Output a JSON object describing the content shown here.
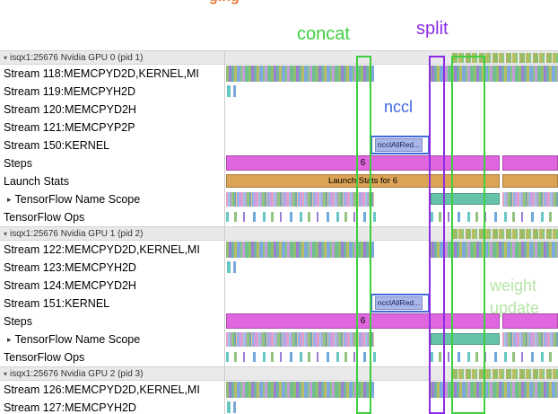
{
  "annotations": {
    "concat": {
      "label": "concat",
      "color": "#3ecf3e"
    },
    "split": {
      "label": "split",
      "color": "#8b2be2"
    },
    "nccl": {
      "label": "nccl",
      "color": "#4169e1"
    },
    "weight_update": {
      "label": "weight update",
      "color": "#b7e6a9"
    }
  },
  "colors": {
    "steps_bar": "#e066e0",
    "launch_bar": "#dba355",
    "nccl_bar": "#abb6e8",
    "tfns_block": "#66c2a8",
    "header_bg": "#e9e9e9",
    "fragment_text": "#e8762c"
  },
  "top_fragment": "ging",
  "groups": [
    {
      "header": "isqx1:25676 Nvidia GPU 0 (pid 1)",
      "rows": [
        {
          "label": "Stream 118:MEMCPYD2D,KERNEL,MI",
          "type": "stream"
        },
        {
          "label": "Stream 119:MEMCPYH2D",
          "type": "memcpy",
          "ticks": true
        },
        {
          "label": "Stream 120:MEMCPYD2H",
          "type": "memcpy"
        },
        {
          "label": "Stream 121:MEMCPYP2P",
          "type": "memcpy"
        },
        {
          "label": "Stream 150:KERNEL",
          "type": "kernel",
          "bar_label": "ncclAllRed..."
        },
        {
          "label": "Steps",
          "type": "steps",
          "bar_label": "6"
        },
        {
          "label": "Launch Stats",
          "type": "launch",
          "bar_label": "Launch Stats for 6"
        },
        {
          "label": "TensorFlow Name Scope",
          "type": "tfns",
          "expander": true
        },
        {
          "label": "TensorFlow Ops",
          "type": "tfops"
        }
      ]
    },
    {
      "header": "isqx1:25676 Nvidia GPU 1 (pid 2)",
      "rows": [
        {
          "label": "Stream 122:MEMCPYD2D,KERNEL,MI",
          "type": "stream"
        },
        {
          "label": "Stream 123:MEMCPYH2D",
          "type": "memcpy",
          "ticks": true
        },
        {
          "label": "Stream 124:MEMCPYD2H",
          "type": "memcpy"
        },
        {
          "label": "Stream 151:KERNEL",
          "type": "kernel",
          "bar_label": "ncclAllRed..."
        },
        {
          "label": "Steps",
          "type": "steps",
          "bar_label": "6"
        },
        {
          "label": "TensorFlow Name Scope",
          "type": "tfns",
          "expander": true
        },
        {
          "label": "TensorFlow Ops",
          "type": "tfops"
        }
      ]
    },
    {
      "header": "isqx1:25676 Nvidia GPU 2 (pid 3)",
      "rows": [
        {
          "label": "Stream 126:MEMCPYD2D,KERNEL,MI",
          "type": "stream"
        },
        {
          "label": "Stream 127:MEMCPYH2D",
          "type": "memcpy",
          "ticks": true
        }
      ]
    }
  ]
}
